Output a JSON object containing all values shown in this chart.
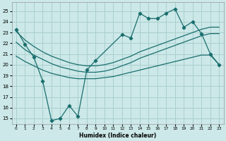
{
  "bg_color": "#cce8e8",
  "grid_color": "#aacfcf",
  "line_color": "#1a6e6e",
  "xlabel": "Humidex (Indice chaleur)",
  "xlim": [
    -0.5,
    23.5
  ],
  "ylim": [
    14.5,
    25.8
  ],
  "xticks": [
    0,
    1,
    2,
    3,
    4,
    5,
    6,
    7,
    8,
    9,
    10,
    11,
    12,
    13,
    14,
    15,
    16,
    17,
    18,
    19,
    20,
    21,
    22,
    23
  ],
  "yticks": [
    15,
    16,
    17,
    18,
    19,
    20,
    21,
    22,
    23,
    24,
    25
  ],
  "jagged_x": [
    0,
    1,
    2,
    3,
    4,
    5,
    6,
    7,
    8,
    9,
    12,
    13,
    14,
    15,
    16,
    17,
    18,
    19,
    20,
    21,
    22,
    23
  ],
  "jagged_y": [
    23.3,
    21.9,
    20.7,
    18.5,
    14.8,
    15.0,
    16.2,
    15.2,
    19.5,
    20.4,
    22.8,
    22.5,
    24.8,
    24.3,
    24.3,
    24.8,
    25.2,
    23.5,
    24.0,
    22.9,
    21.0,
    20.0
  ],
  "line_top_x": [
    0,
    1,
    2,
    3,
    4,
    5,
    6,
    7,
    8,
    9,
    10,
    11,
    12,
    13,
    14,
    15,
    16,
    17,
    18,
    19,
    20,
    21,
    22,
    23
  ],
  "line_top_y": [
    23.1,
    22.3,
    21.7,
    21.2,
    20.8,
    20.5,
    20.2,
    20.0,
    19.9,
    19.9,
    20.0,
    20.2,
    20.5,
    20.8,
    21.2,
    21.5,
    21.8,
    22.1,
    22.4,
    22.7,
    23.0,
    23.3,
    23.5,
    23.5
  ],
  "line_mid_x": [
    0,
    1,
    2,
    3,
    4,
    5,
    6,
    7,
    8,
    9,
    10,
    11,
    12,
    13,
    14,
    15,
    16,
    17,
    18,
    19,
    20,
    21,
    22,
    23
  ],
  "line_mid_y": [
    22.1,
    21.4,
    20.9,
    20.5,
    20.1,
    19.8,
    19.6,
    19.4,
    19.3,
    19.3,
    19.4,
    19.6,
    19.9,
    20.2,
    20.6,
    20.9,
    21.2,
    21.5,
    21.8,
    22.1,
    22.4,
    22.7,
    22.9,
    22.9
  ],
  "line_bot_x": [
    0,
    1,
    2,
    3,
    4,
    5,
    6,
    7,
    8,
    9,
    10,
    11,
    12,
    13,
    14,
    15,
    16,
    17,
    18,
    19,
    20,
    21,
    22,
    23
  ],
  "line_bot_y": [
    20.8,
    20.3,
    19.9,
    19.5,
    19.2,
    19.0,
    18.8,
    18.7,
    18.7,
    18.7,
    18.8,
    18.9,
    19.1,
    19.3,
    19.5,
    19.7,
    19.9,
    20.1,
    20.3,
    20.5,
    20.7,
    20.9,
    20.9,
    20.0
  ]
}
